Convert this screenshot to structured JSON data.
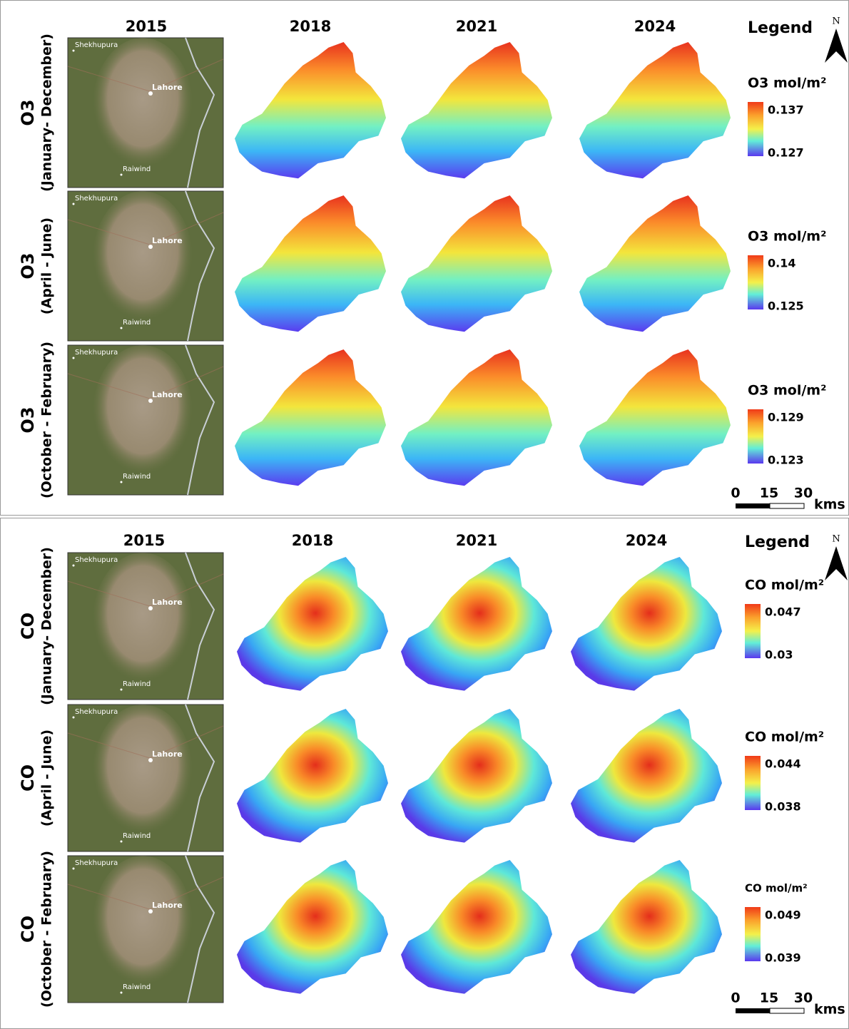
{
  "places": [
    "Shekhupura",
    "Lahore",
    "Raiwind"
  ],
  "panels": [
    {
      "years": [
        "2015",
        "2018",
        "2021",
        "2024"
      ],
      "legend_title": "Legend",
      "north": "N",
      "rows": [
        {
          "pollutant": "O3",
          "period": "(January- December)",
          "unit": "O3 mol/m²",
          "max": 0.137,
          "min": 0.127
        },
        {
          "pollutant": "O3",
          "period": "(April - June)",
          "unit": "O3 mol/m²",
          "max": 0.14,
          "min": 0.125
        },
        {
          "pollutant": "O3",
          "period": "(October - February)",
          "unit": "O3 mol/m²",
          "max": 0.129,
          "min": 0.123
        }
      ],
      "scale": {
        "ticks": [
          0,
          15,
          30
        ],
        "unit": "kms"
      }
    },
    {
      "years": [
        "2015",
        "2018",
        "2021",
        "2024"
      ],
      "legend_title": "Legend",
      "north": "N",
      "rows": [
        {
          "pollutant": "CO",
          "period": "(January- December)",
          "unit": "CO mol/m²",
          "max": 0.047,
          "min": 0.03
        },
        {
          "pollutant": "CO",
          "period": "(April - June)",
          "unit": "CO mol/m²",
          "max": 0.044,
          "min": 0.038
        },
        {
          "pollutant": "CO",
          "period": "(October - February)",
          "unit": "CO mol/m²",
          "max": 0.049,
          "min": 0.039
        }
      ],
      "scale": {
        "ticks": [
          0,
          15,
          30
        ],
        "unit": "kms"
      }
    }
  ]
}
